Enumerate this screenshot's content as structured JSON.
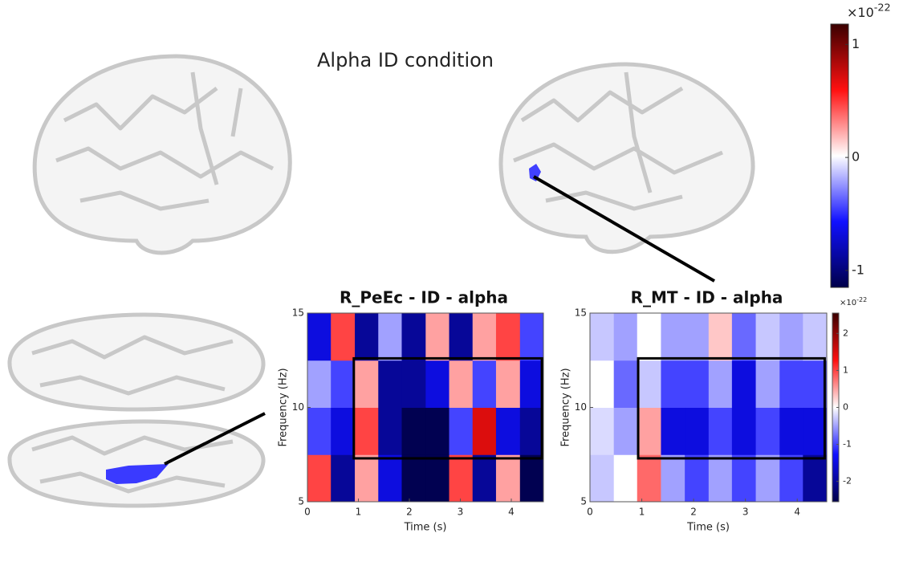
{
  "title": "Alpha ID condition",
  "chart_data": [
    {
      "type": "heatmap",
      "title": "R_PeEc - ID - alpha",
      "x_label": "Time (s)",
      "y_label": "Frequency (Hz)",
      "xlim": [
        0,
        4.63
      ],
      "xticks": [
        0,
        1,
        2,
        3,
        4
      ],
      "ylim": [
        5,
        15
      ],
      "yticks": [
        5,
        10,
        15
      ],
      "xbins": [
        0,
        0.46,
        0.93,
        1.39,
        1.85,
        2.32,
        2.78,
        3.24,
        3.7,
        4.17,
        4.63
      ],
      "ybins": [
        5,
        7.5,
        10,
        12.5,
        15
      ],
      "values": [
        [
          1,
          -2,
          0.5,
          -1.5,
          -2.5,
          -2.5,
          1,
          -2,
          0.5,
          -2.5
        ],
        [
          -1,
          -1.5,
          1,
          -2,
          -2.5,
          -2.5,
          -1,
          1.5,
          -1.5,
          -2
        ],
        [
          -0.5,
          -1,
          0.5,
          -2,
          -2,
          -1.5,
          0.5,
          -1,
          0.5,
          -1.5
        ],
        [
          -1.5,
          1,
          -2,
          -0.5,
          -2,
          0.5,
          -2,
          0.5,
          1,
          -1
        ]
      ],
      "clim": [
        -2.55,
        2.55
      ],
      "box": {
        "x": [
          0.91,
          4.6
        ],
        "y": [
          7.3,
          12.6
        ]
      }
    },
    {
      "type": "heatmap",
      "title": "R_MT - ID - alpha",
      "x_label": "Time (s)",
      "y_label": "Frequency (Hz)",
      "xlim": [
        0,
        4.57
      ],
      "xticks": [
        0,
        1,
        2,
        3,
        4
      ],
      "ylim": [
        5,
        15
      ],
      "yticks": [
        5,
        10,
        15
      ],
      "xbins": [
        0,
        0.46,
        0.91,
        1.37,
        1.83,
        2.29,
        2.74,
        3.2,
        3.66,
        4.11,
        4.57
      ],
      "ybins": [
        5,
        7.5,
        10,
        12.5,
        15
      ],
      "values": [
        [
          -0.3,
          0,
          0.8,
          -0.5,
          -1,
          -0.5,
          -1,
          -0.5,
          -1,
          -2
        ],
        [
          -0.2,
          -0.5,
          0.5,
          -1.5,
          -1.5,
          -1,
          -1.5,
          -1,
          -1.5,
          -1.5
        ],
        [
          0,
          -0.8,
          -0.3,
          -1,
          -1,
          -0.5,
          -1.5,
          -0.5,
          -1,
          -1
        ],
        [
          -0.3,
          -0.5,
          0,
          -0.5,
          -0.5,
          0.3,
          -0.8,
          -0.3,
          -0.5,
          -0.3
        ]
      ],
      "clim": [
        -2.55,
        2.55
      ],
      "cticks": [
        -2,
        -1,
        0,
        1,
        2
      ],
      "multiplier": "×10",
      "exponent": "-22",
      "box": {
        "x": [
          0.93,
          4.53
        ],
        "y": [
          7.3,
          12.6
        ]
      }
    },
    {
      "type": "colorbar",
      "clim": [
        -1.15,
        1.18
      ],
      "cticks": [
        -1,
        0,
        1
      ],
      "multiplier": "×10",
      "exponent": "-22"
    }
  ]
}
